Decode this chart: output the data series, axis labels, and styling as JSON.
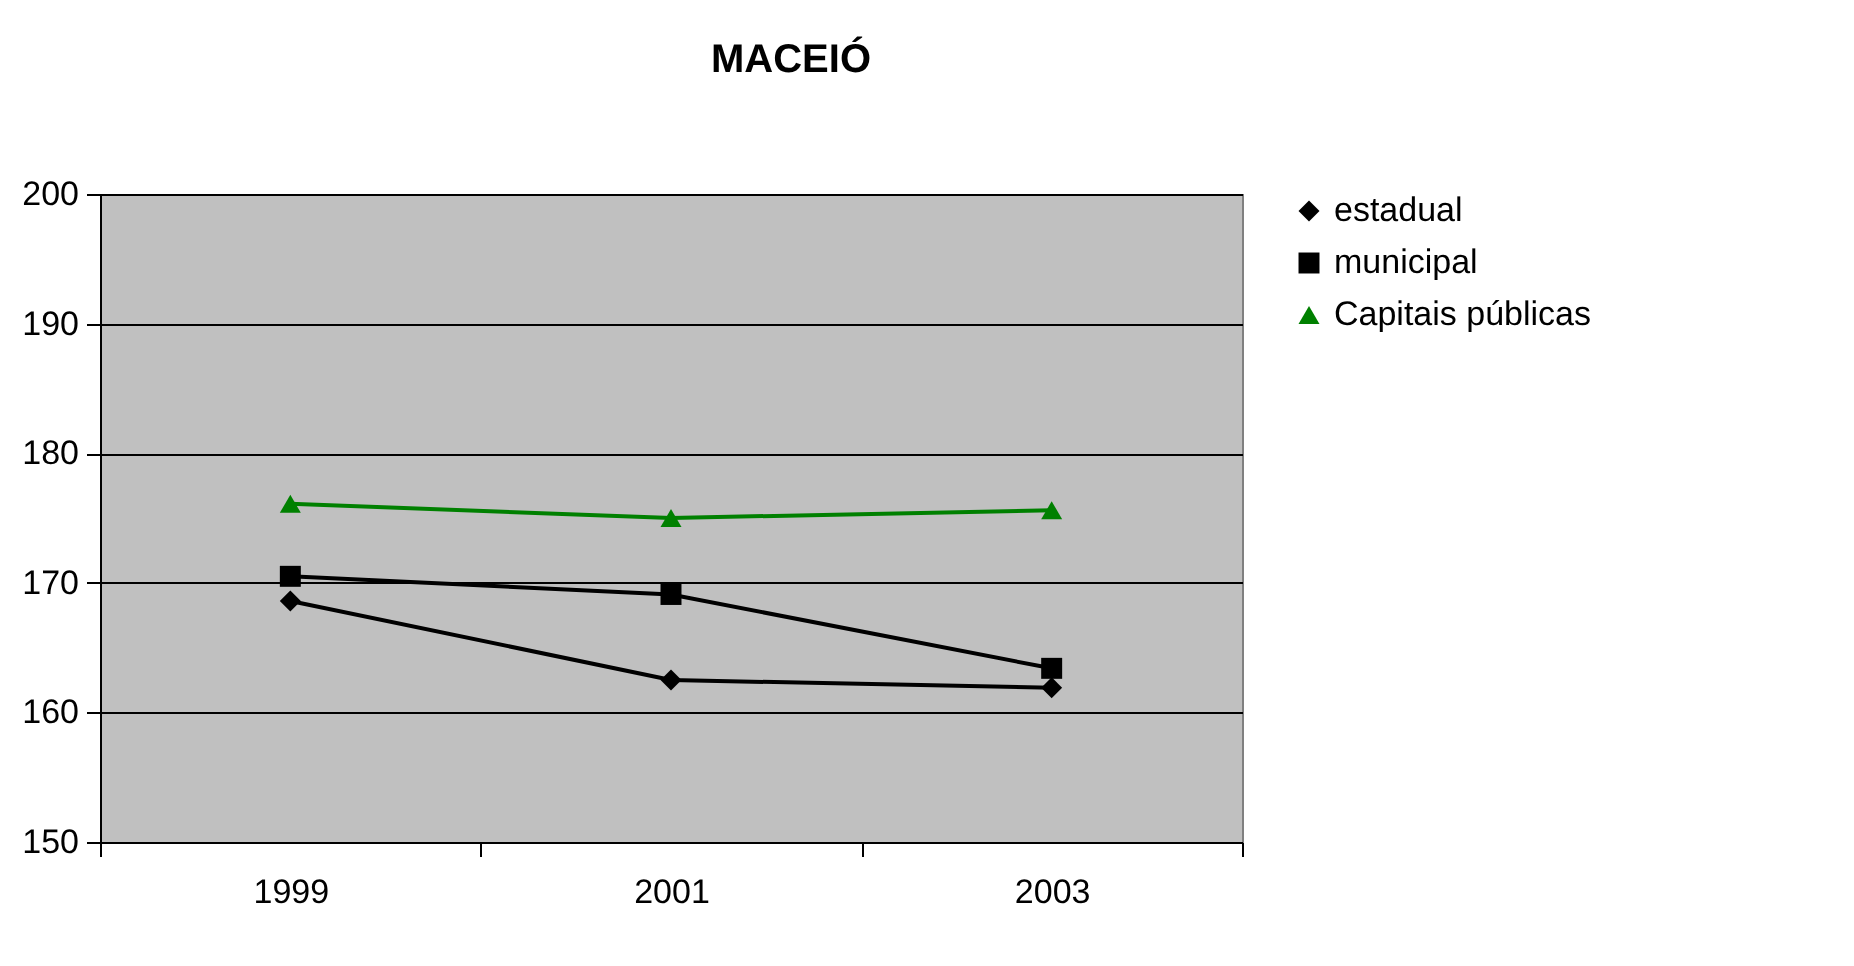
{
  "chart_data": {
    "type": "line",
    "title": "MACEIÓ",
    "categories": [
      "1999",
      "2001",
      "2003"
    ],
    "series": [
      {
        "name": "estadual",
        "color": "#000000",
        "marker": "diamond",
        "values": [
          168.6,
          162.5,
          161.9
        ]
      },
      {
        "name": "municipal",
        "color": "#000000",
        "marker": "square",
        "values": [
          170.5,
          169.1,
          163.4
        ]
      },
      {
        "name": "Capitais públicas",
        "color": "#008000",
        "marker": "triangle",
        "values": [
          176.1,
          175.0,
          175.6
        ]
      }
    ],
    "ylim": [
      150,
      200
    ],
    "yticks": [
      150,
      160,
      170,
      180,
      190,
      200
    ],
    "grid": "y",
    "legend": "right",
    "line_style": "solid"
  }
}
